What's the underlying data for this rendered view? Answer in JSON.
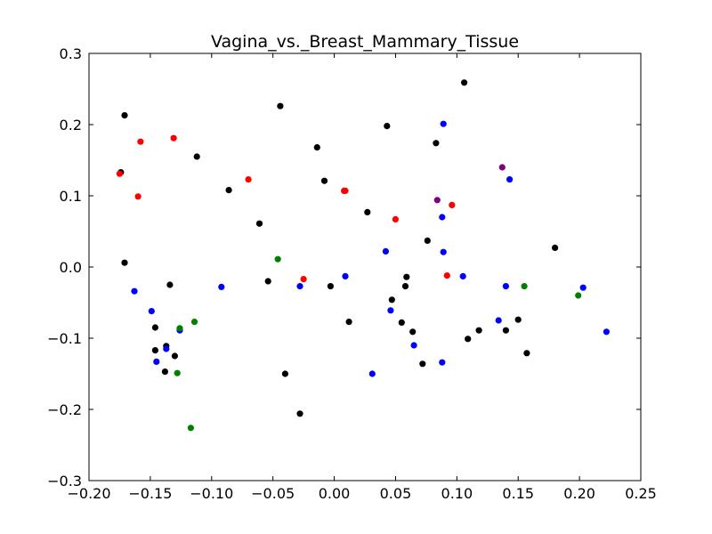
{
  "chart_data": {
    "type": "scatter",
    "title": "Vagina_vs._Breast_Mammary_Tissue",
    "xlim": [
      -0.2,
      0.25
    ],
    "ylim": [
      -0.3,
      0.3
    ],
    "xticks": [
      -0.2,
      -0.15,
      -0.1,
      -0.05,
      0.0,
      0.05,
      0.1,
      0.15,
      0.2,
      0.25
    ],
    "xtick_labels": [
      "−0.20",
      "−0.15",
      "−0.10",
      "−0.05",
      "0.00",
      "0.05",
      "0.10",
      "0.15",
      "0.20",
      "0.25"
    ],
    "yticks": [
      -0.3,
      -0.2,
      -0.1,
      0.0,
      0.1,
      0.2,
      0.3
    ],
    "ytick_labels": [
      "−0.3",
      "−0.2",
      "−0.1",
      "0.0",
      "0.1",
      "0.2",
      "0.3"
    ],
    "grid": false,
    "series": [
      {
        "color": "#000000",
        "points": [
          [
            -0.171,
            0.213
          ],
          [
            -0.174,
            0.133
          ],
          [
            -0.171,
            0.006
          ],
          [
            -0.112,
            0.155
          ],
          [
            -0.044,
            0.226
          ],
          [
            -0.086,
            0.108
          ],
          [
            -0.061,
            0.061
          ],
          [
            -0.014,
            0.168
          ],
          [
            -0.008,
            0.121
          ],
          [
            0.043,
            0.198
          ],
          [
            0.027,
            0.077
          ],
          [
            0.083,
            0.174
          ],
          [
            0.106,
            0.259
          ],
          [
            0.076,
            0.037
          ],
          [
            0.18,
            0.027
          ],
          [
            -0.134,
            -0.025
          ],
          [
            -0.146,
            -0.085
          ],
          [
            -0.146,
            -0.117
          ],
          [
            -0.137,
            -0.111
          ],
          [
            -0.13,
            -0.125
          ],
          [
            -0.138,
            -0.147
          ],
          [
            -0.054,
            -0.02
          ],
          [
            -0.003,
            -0.027
          ],
          [
            0.012,
            -0.077
          ],
          [
            -0.04,
            -0.15
          ],
          [
            -0.028,
            -0.206
          ],
          [
            0.047,
            -0.046
          ],
          [
            0.058,
            -0.027
          ],
          [
            0.059,
            -0.014
          ],
          [
            0.055,
            -0.078
          ],
          [
            0.064,
            -0.091
          ],
          [
            0.072,
            -0.136
          ],
          [
            0.109,
            -0.101
          ],
          [
            0.118,
            -0.089
          ],
          [
            0.14,
            -0.089
          ],
          [
            0.15,
            -0.074
          ],
          [
            0.157,
            -0.121
          ]
        ]
      },
      {
        "color": "#0000ff",
        "points": [
          [
            -0.163,
            -0.034
          ],
          [
            -0.149,
            -0.062
          ],
          [
            -0.145,
            -0.133
          ],
          [
            -0.137,
            -0.115
          ],
          [
            -0.126,
            -0.089
          ],
          [
            -0.092,
            -0.028
          ],
          [
            -0.028,
            -0.027
          ],
          [
            0.009,
            -0.013
          ],
          [
            0.042,
            0.022
          ],
          [
            0.046,
            -0.061
          ],
          [
            0.031,
            -0.15
          ],
          [
            0.065,
            -0.11
          ],
          [
            0.089,
            0.201
          ],
          [
            0.088,
            0.07
          ],
          [
            0.089,
            0.021
          ],
          [
            0.105,
            -0.013
          ],
          [
            0.088,
            -0.134
          ],
          [
            0.143,
            0.123
          ],
          [
            0.14,
            -0.027
          ],
          [
            0.134,
            -0.075
          ],
          [
            0.203,
            -0.029
          ],
          [
            0.222,
            -0.091
          ]
        ]
      },
      {
        "color": "#ff0000",
        "points": [
          [
            -0.175,
            0.131
          ],
          [
            -0.158,
            0.176
          ],
          [
            -0.16,
            0.099
          ],
          [
            -0.131,
            0.181
          ],
          [
            -0.07,
            0.123
          ],
          [
            -0.025,
            -0.017
          ],
          [
            0.008,
            0.107
          ],
          [
            0.009,
            0.107
          ],
          [
            0.05,
            0.067
          ],
          [
            0.096,
            0.087
          ],
          [
            0.092,
            -0.012
          ]
        ]
      },
      {
        "color": "#008000",
        "points": [
          [
            -0.046,
            0.011
          ],
          [
            -0.114,
            -0.077
          ],
          [
            -0.126,
            -0.086
          ],
          [
            -0.128,
            -0.149
          ],
          [
            -0.117,
            -0.226
          ],
          [
            0.155,
            -0.027
          ],
          [
            0.199,
            -0.04
          ]
        ]
      },
      {
        "color": "#800080",
        "points": [
          [
            0.137,
            0.14
          ],
          [
            0.084,
            0.094
          ]
        ]
      }
    ]
  }
}
